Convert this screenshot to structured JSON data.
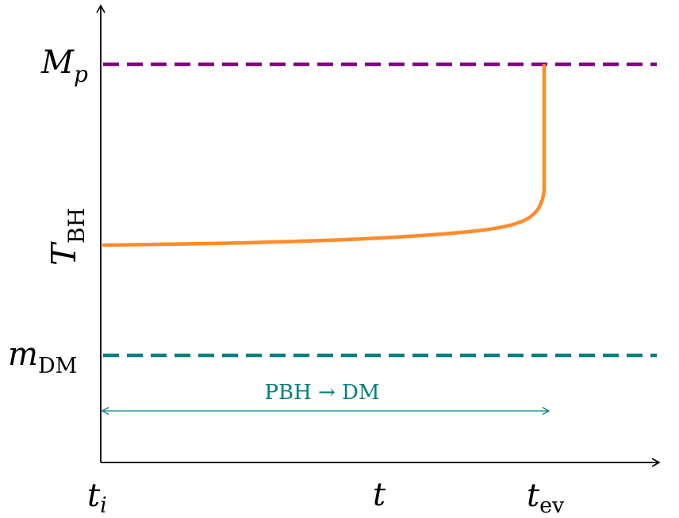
{
  "colors": {
    "axis": "#000000",
    "planck_line": "#800080",
    "dm_line": "#008080",
    "temperature_curve": "#ff8c2a",
    "range_arrow": "#008080"
  },
  "y_axis": {
    "label_main": "T",
    "label_sub": "BH",
    "ticks": {
      "planck": {
        "main": "M",
        "sub": "p"
      },
      "dark_matter": {
        "main": "m",
        "sub": "DM"
      }
    }
  },
  "x_axis": {
    "label": "t",
    "ticks": {
      "initial": {
        "main": "t",
        "sub": "i"
      },
      "evaporation": {
        "main": "t",
        "sub": "ev"
      }
    }
  },
  "range_annotation": "PBH → DM"
}
